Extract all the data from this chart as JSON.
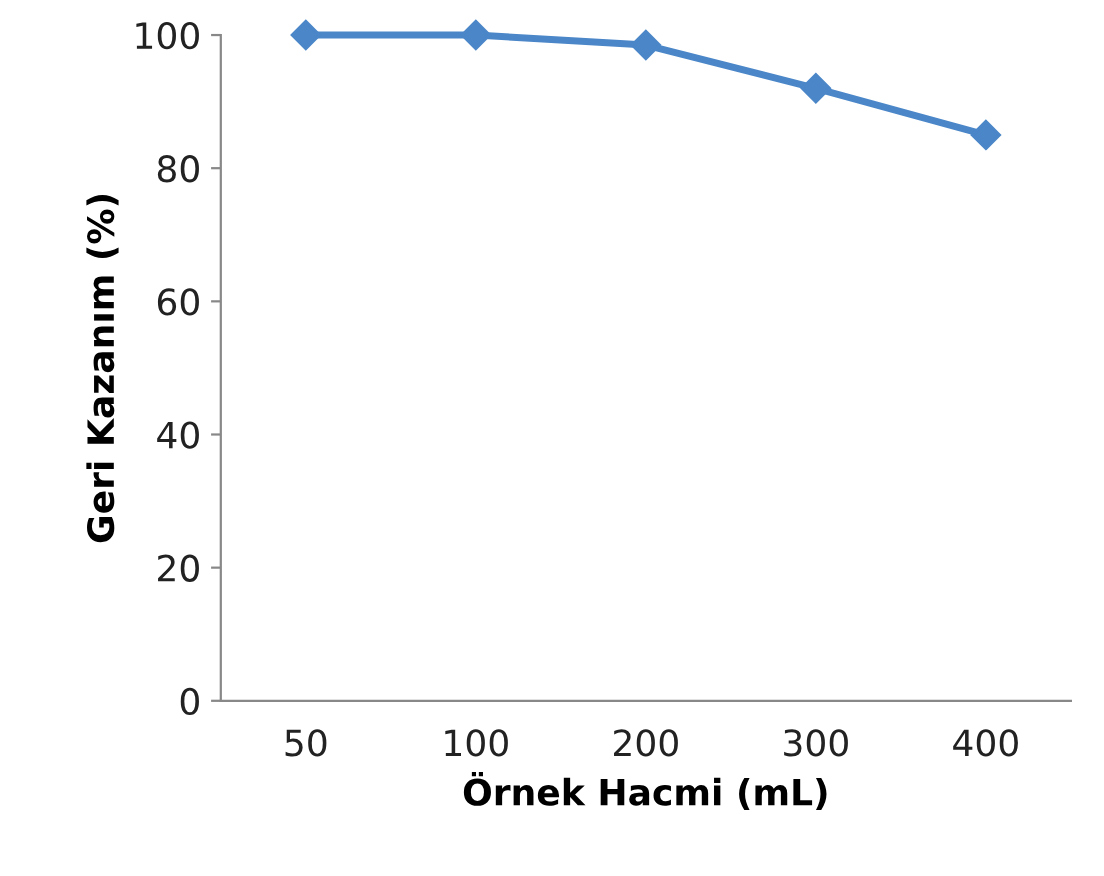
{
  "chart_data": {
    "type": "line",
    "xlabel": "Örnek Hacmi (mL)",
    "ylabel": "Geri Kazanım (%)",
    "categories": [
      "50",
      "100",
      "200",
      "300",
      "400"
    ],
    "series": [
      {
        "color": "#4a86c8",
        "values": [
          100,
          100,
          98.5,
          92,
          85
        ]
      }
    ],
    "ylim": [
      0,
      100
    ],
    "yticks": [
      0,
      20,
      40,
      60,
      80,
      100
    ],
    "marker": "diamond",
    "line_style": "solid"
  }
}
